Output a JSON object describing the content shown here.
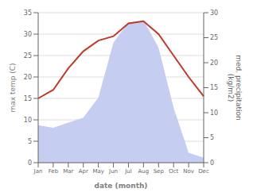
{
  "chart_data": {
    "type": "line",
    "categories": [
      "Jan",
      "Feb",
      "Mar",
      "Apr",
      "May",
      "Jun",
      "Jul",
      "Aug",
      "Sep",
      "Oct",
      "Nov",
      "Dec"
    ],
    "series": [
      {
        "type": "area",
        "axis": "y2",
        "color": "#c5cdf0",
        "values": [
          7.5,
          7.0,
          8.0,
          9.0,
          13.0,
          24.0,
          28.0,
          28.5,
          23.0,
          11.0,
          2.0,
          1.0
        ]
      },
      {
        "type": "line",
        "color": "#c0392b",
        "values": [
          15.0,
          17.0,
          22.0,
          26.0,
          28.5,
          29.5,
          32.5,
          33.0,
          30.0,
          25.0,
          20.0,
          15.5
        ]
      }
    ],
    "xlabel": "date (month)",
    "ylabel": "max temp (C)",
    "y2label": "med. precipitation\n(kg/m2)",
    "ylim": [
      0,
      35
    ],
    "yticks": [
      0,
      5,
      10,
      15,
      20,
      25,
      30,
      35
    ],
    "y2lim": [
      0,
      30
    ],
    "y2ticks": [
      0,
      5,
      10,
      15,
      20,
      25,
      30
    ],
    "grid": true
  }
}
